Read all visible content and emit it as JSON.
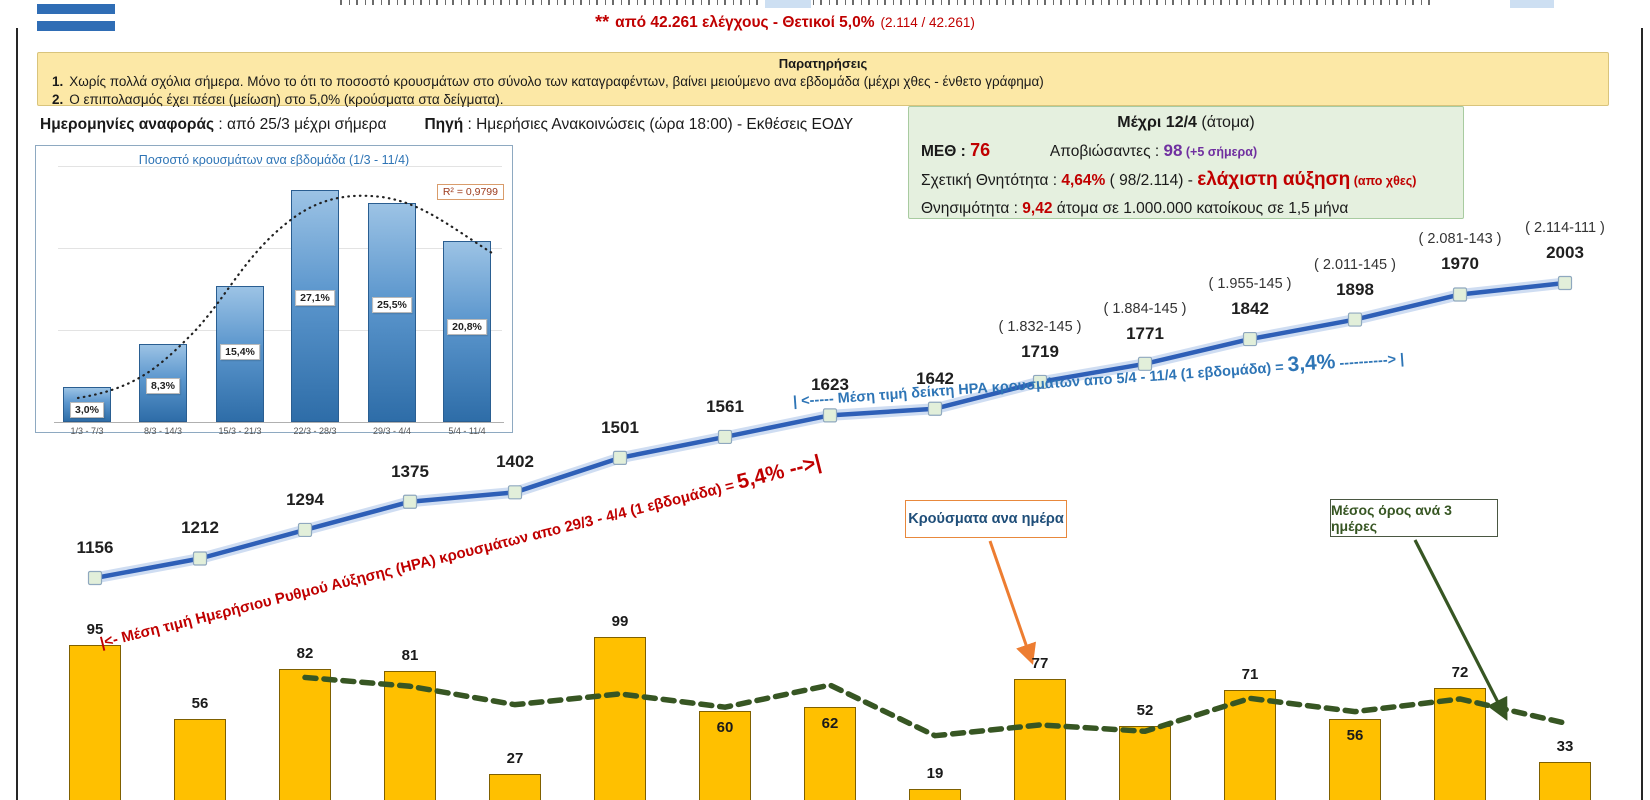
{
  "header": {
    "flag_icon": "greek-flag-stripes",
    "note_stars": "**",
    "note_text": "από 42.261 ελέγχους - Θετικοί 5,0%",
    "note_detail": "(2.114 / 42.261)"
  },
  "notes": {
    "title": "Παρατηρήσεις",
    "items": [
      {
        "num": "1.",
        "text": "Χωρίς πολλά σχόλια σήμερα. Μόνο το ότι το ποσοστό κρουσμάτων στο σύνολο των καταγραφέντων, βαίνει μειούμενο ανα εβδομάδα (μέχρι χθες - ένθετο γράφημα)"
      },
      {
        "num": "2.",
        "text": "Ο επιπολασμός έχει πέσει (μείωση) στο 5,0% (κρούσματα στα δείγματα)."
      }
    ]
  },
  "meta": {
    "dates_label": "Ημερομηνίες αναφοράς",
    "dates_sep": " : ",
    "dates_value": "από 25/3 μέχρι σήμερα",
    "source_label": "Πηγή",
    "source_sep": " : ",
    "source_value": "Ημερήσιες Ανακοινώσεις (ώρα 18:00) - Εκθέσεις ΕΟΔΥ"
  },
  "stats": {
    "title_bold": "Μέχρι 12/4",
    "title_rest": " (άτομα)",
    "icu_label": "ΜΕΘ : ",
    "icu_value": "76",
    "deaths_label": "Αποβιώσαντες : ",
    "deaths_value": "98",
    "deaths_delta": " (+5 σήμερα)",
    "cfr_label": "Σχετική Θνητότητα : ",
    "cfr_value": "4,64%",
    "cfr_detail": " ( 98/2.114) - ",
    "cfr_note": "ελάχιστη αύξηση",
    "cfr_note_sub": " (απο χθες)",
    "mort_label": "Θνησιμότητα : ",
    "mort_value": "9,42",
    "mort_rest": " άτομα σε 1.000.000 κατοίκους σε 1,5 μήνα"
  },
  "chart_data": [
    {
      "id": "weekly-positive-share",
      "type": "bar",
      "title": "Ποσοστό κρουσμάτων ανα εβδομάδα (1/3 - 11/4)",
      "categories": [
        "1/3 - 7/3",
        "8/3 - 14/3",
        "15/3 - 21/3",
        "22/3 - 28/3",
        "29/3 - 4/4",
        "5/4 - 11/4"
      ],
      "values": [
        3.0,
        8.3,
        15.4,
        27.1,
        25.5,
        20.8
      ],
      "value_labels": [
        "3,0%",
        "8,3%",
        "15,4%",
        "27,1%",
        "25,5%",
        "20,8%"
      ],
      "r_squared_label": "R² = 0,9799",
      "trendline": "dotted-polynomial",
      "ylim": [
        0,
        30
      ],
      "grid": true
    },
    {
      "id": "cumulative-cases",
      "type": "line",
      "values": [
        1156,
        1212,
        1294,
        1375,
        1402,
        1501,
        1561,
        1623,
        1642,
        1719,
        1771,
        1842,
        1898,
        1970,
        2003
      ],
      "point_annotations": {
        "9": "( 1.832-145 )",
        "10": "( 1.884-145 )",
        "11": "( 1.955-145 )",
        "12": "( 2.011-145 )",
        "13": "( 2.081-143 )",
        "14": "( 2.114-111 )"
      },
      "annotation_red": {
        "prefix": "|<- Μέση τιμή Ημερήσιου Ρυθμού Αύξησης (ΗΡΑ) κρουσμάτων απο 29/3 - 4/4 (1 εβδομάδα) = ",
        "highlight": "5,4% -->|"
      },
      "annotation_blue": {
        "prefix": "| <-----    Μέση τιμή δείκτη ΗΡΑ κρουσμάτων απο 5/4 - 11/4 (1 εβδομάδα) =  ",
        "highlight": "3,4%",
        "suffix": " ----------> |"
      }
    },
    {
      "id": "daily-cases",
      "type": "bar",
      "values": [
        95,
        56,
        82,
        81,
        27,
        99,
        60,
        62,
        19,
        77,
        52,
        71,
        56,
        72,
        33
      ],
      "inside_label_indexes": [
        6,
        7,
        12
      ],
      "bars_label": "Κρούσματα ανα ημέρα",
      "moving_average": {
        "window": 3,
        "label": "Μέσος όρος ανά 3 ημέρες"
      }
    }
  ],
  "colors": {
    "accent_red": "#C00000",
    "accent_purple": "#7030A0",
    "line_blue": "#2E5FB7",
    "line_halo": "#AFC6EA",
    "marker_fill": "#E2EFDA",
    "bar_yellow": "#FFC000",
    "bar_outline": "#7f6000",
    "ma_green": "#375623",
    "callout_orange": "#ED7D31",
    "inset_title_blue": "#2E74B5"
  }
}
